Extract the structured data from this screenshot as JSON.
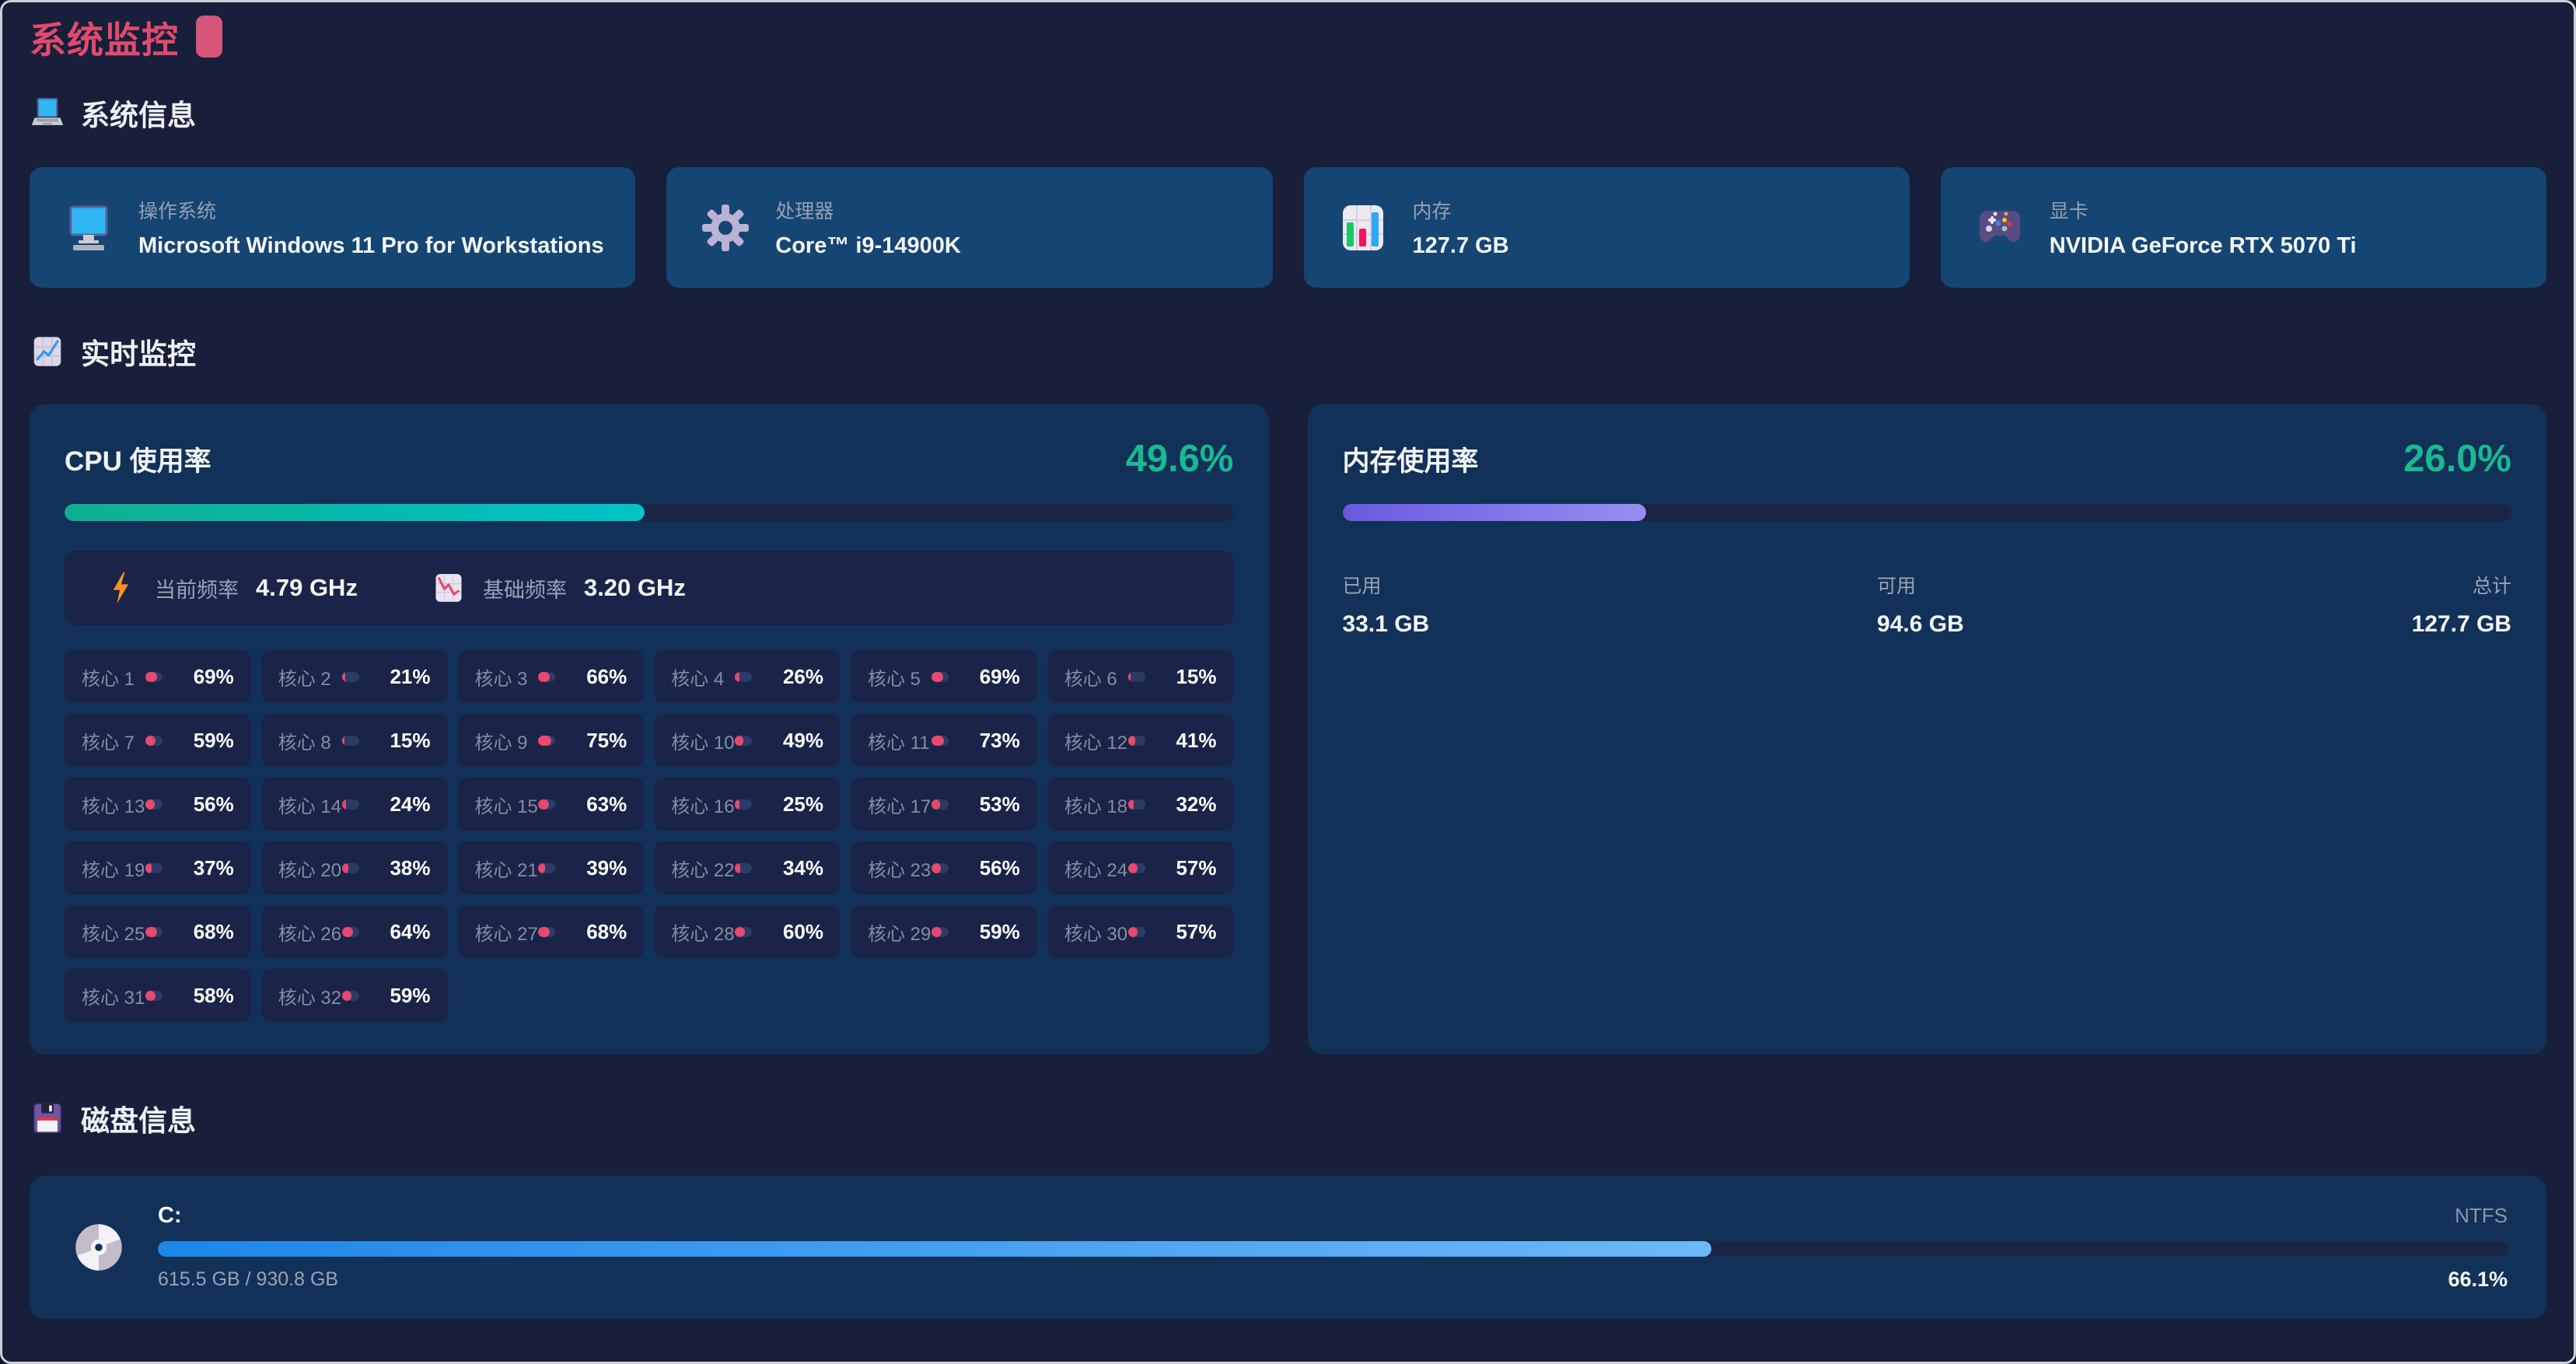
{
  "header": {
    "title": "系统监控"
  },
  "system_info": {
    "section_title": "系统信息",
    "cards": [
      {
        "icon": "desktop-icon",
        "label": "操作系统",
        "value": "Microsoft Windows 11 Pro for Workstations"
      },
      {
        "icon": "gear-icon",
        "label": "处理器",
        "value": "Core™ i9-14900K"
      },
      {
        "icon": "memory-chart-icon",
        "label": "内存",
        "value": "127.7 GB"
      },
      {
        "icon": "gamepad-icon",
        "label": "显卡",
        "value": "NVIDIA GeForce RTX 5070 Ti"
      }
    ]
  },
  "realtime": {
    "section_title": "实时监控",
    "cpu": {
      "title": "CPU 使用率",
      "usage_text": "49.6%",
      "usage_percent": 49.6,
      "current_freq_label": "当前频率",
      "current_freq_value": "4.79 GHz",
      "base_freq_label": "基础频率",
      "base_freq_value": "3.20 GHz",
      "core_prefix": "核心",
      "cores": [
        69,
        21,
        66,
        26,
        69,
        15,
        59,
        15,
        75,
        49,
        73,
        41,
        56,
        24,
        63,
        25,
        53,
        32,
        37,
        38,
        39,
        34,
        56,
        57,
        68,
        64,
        68,
        60,
        59,
        57,
        58,
        59
      ]
    },
    "memory": {
      "title": "内存使用率",
      "usage_text": "26.0%",
      "usage_percent": 26.0,
      "details": [
        {
          "label": "已用",
          "value": "33.1 GB"
        },
        {
          "label": "可用",
          "value": "94.6 GB"
        },
        {
          "label": "总计",
          "value": "127.7 GB"
        }
      ]
    }
  },
  "disk": {
    "section_title": "磁盘信息",
    "drives": [
      {
        "name": "C:",
        "filesystem": "NTFS",
        "usage_text": "615.5 GB / 930.8 GB",
        "percent_text": "66.1%",
        "percent": 66.1
      }
    ]
  },
  "colors": {
    "accent_pink": "#e14a6e",
    "usage_green": "#19b992",
    "cpu_bar_start": "#0fae8f",
    "cpu_bar_end": "#00c3c7",
    "memory_bar_start": "#6a59e0",
    "memory_bar_end": "#978df2",
    "disk_bar_start": "#1d86e8",
    "disk_bar_end": "#6cb8f7",
    "core_dot_pink": "#e8486e"
  }
}
